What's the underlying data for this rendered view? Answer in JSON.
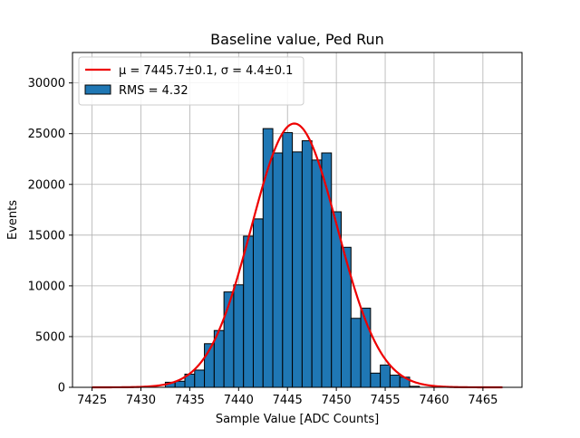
{
  "chart_data": {
    "type": "bar",
    "title": "Baseline value, Ped Run",
    "xlabel": "Sample Value [ADC Counts]",
    "ylabel": "Events",
    "xlim": [
      7423,
      7469
    ],
    "ylim": [
      0,
      33000
    ],
    "xticks": [
      7425,
      7430,
      7435,
      7440,
      7445,
      7450,
      7455,
      7460,
      7465
    ],
    "yticks": [
      0,
      5000,
      10000,
      15000,
      20000,
      25000,
      30000
    ],
    "grid": true,
    "legend_position": "upper-left",
    "bin_width": 1,
    "bins": [
      {
        "x": 7433,
        "value": 500
      },
      {
        "x": 7434,
        "value": 600
      },
      {
        "x": 7435,
        "value": 1300
      },
      {
        "x": 7436,
        "value": 1700
      },
      {
        "x": 7437,
        "value": 4300
      },
      {
        "x": 7438,
        "value": 5600
      },
      {
        "x": 7439,
        "value": 9400
      },
      {
        "x": 7440,
        "value": 10100
      },
      {
        "x": 7441,
        "value": 14900
      },
      {
        "x": 7442,
        "value": 16600
      },
      {
        "x": 7443,
        "value": 25500
      },
      {
        "x": 7444,
        "value": 23100
      },
      {
        "x": 7445,
        "value": 25100
      },
      {
        "x": 7446,
        "value": 23200
      },
      {
        "x": 7447,
        "value": 24300
      },
      {
        "x": 7448,
        "value": 22400
      },
      {
        "x": 7449,
        "value": 23100
      },
      {
        "x": 7450,
        "value": 17300
      },
      {
        "x": 7451,
        "value": 13800
      },
      {
        "x": 7452,
        "value": 6800
      },
      {
        "x": 7453,
        "value": 7800
      },
      {
        "x": 7454,
        "value": 1400
      },
      {
        "x": 7455,
        "value": 2200
      },
      {
        "x": 7456,
        "value": 1200
      },
      {
        "x": 7457,
        "value": 1000
      },
      {
        "x": 7458,
        "value": 100
      }
    ],
    "fit": {
      "type": "gaussian",
      "mu": 7445.7,
      "sigma": 4.4,
      "amplitude": 26000,
      "x_range": [
        7425,
        7467
      ]
    },
    "legend": {
      "fit_label": "μ = 7445.7±0.1, σ = 4.4±0.1",
      "hist_label": "RMS = 4.32"
    },
    "colors": {
      "bar_fill": "#1f77b4",
      "bar_edge": "#000000",
      "fit_line": "#ee0000",
      "grid": "#b0b0b0"
    }
  }
}
